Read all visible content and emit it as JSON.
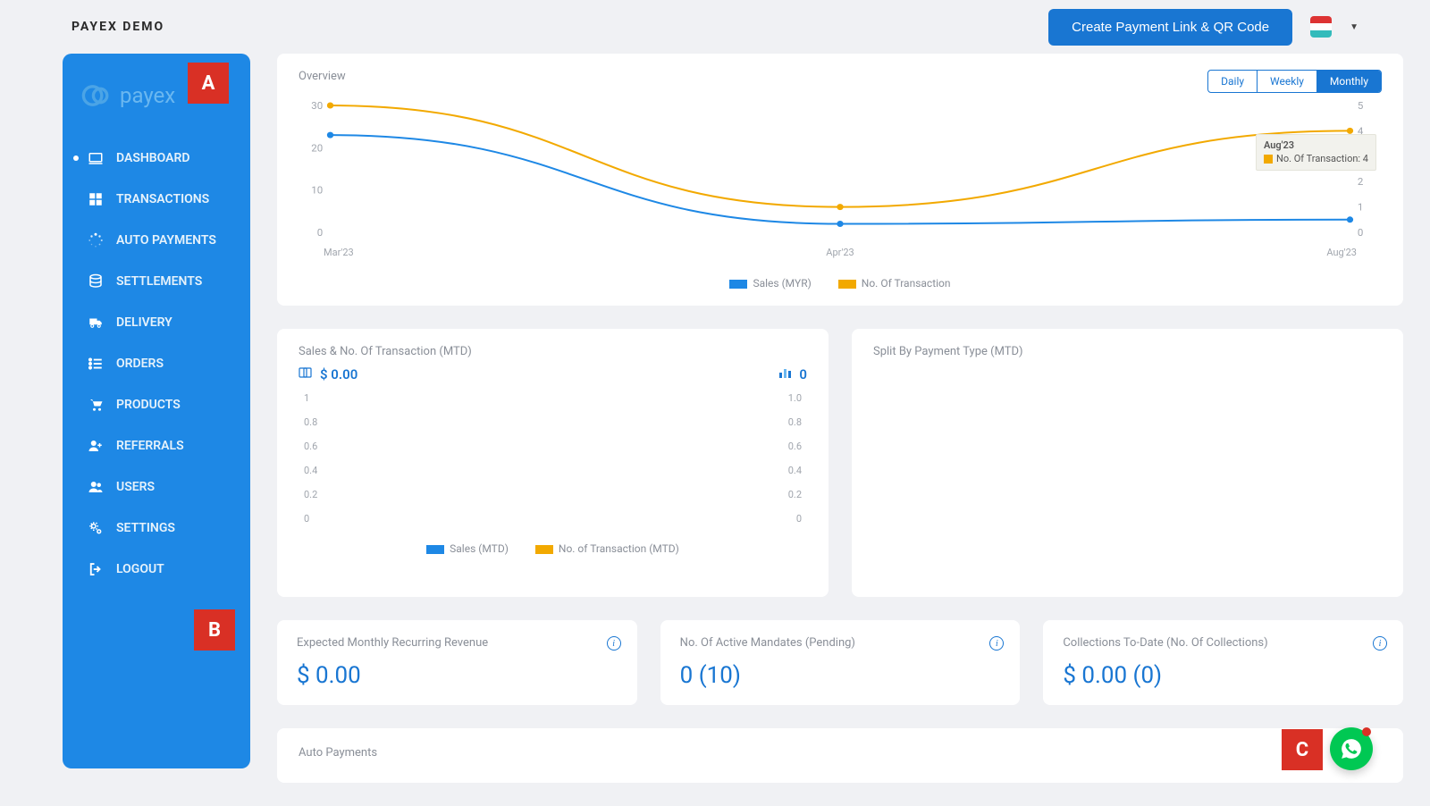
{
  "header": {
    "brand": "PAYEX DEMO",
    "create_btn": "Create Payment Link & QR Code"
  },
  "sidebar": {
    "logo_text": "payex",
    "items": [
      {
        "icon": "laptop",
        "label": "DASHBOARD",
        "active": true
      },
      {
        "icon": "grid",
        "label": "TRANSACTIONS"
      },
      {
        "icon": "spinner",
        "label": "AUTO PAYMENTS"
      },
      {
        "icon": "db",
        "label": "SETTLEMENTS"
      },
      {
        "icon": "truck",
        "label": "DELIVERY"
      },
      {
        "icon": "list",
        "label": "ORDERS"
      },
      {
        "icon": "cart",
        "label": "PRODUCTS"
      },
      {
        "icon": "useradd",
        "label": "REFERRALS"
      },
      {
        "icon": "users",
        "label": "USERS"
      },
      {
        "icon": "cogs",
        "label": "SETTINGS"
      },
      {
        "icon": "logout",
        "label": "LOGOUT"
      }
    ]
  },
  "overview": {
    "title": "Overview",
    "tabs": [
      "Daily",
      "Weekly",
      "Monthly"
    ],
    "active_tab": 2,
    "chart": {
      "x_labels": [
        "Mar'23",
        "Apr'23",
        "Aug'23"
      ],
      "left_ticks": [
        30,
        20,
        10,
        0
      ],
      "right_ticks": [
        5,
        4,
        3,
        2,
        1,
        0
      ],
      "series": [
        {
          "name": "Sales (MYR)",
          "color": "#1e88e5",
          "points": [
            {
              "x": 0,
              "y": 23
            },
            {
              "x": 1,
              "y": 2
            },
            {
              "x": 2,
              "y": 3
            }
          ]
        },
        {
          "name": "No. Of Transaction",
          "color": "#f2a900",
          "right_axis": true,
          "points": [
            {
              "x": 0,
              "y": 5
            },
            {
              "x": 1,
              "y": 1
            },
            {
              "x": 2,
              "y": 4
            }
          ]
        }
      ],
      "tooltip": {
        "title": "Aug'23",
        "label": "No. Of Transaction: 4"
      },
      "left_max": 30,
      "right_max": 5
    },
    "legend": [
      "Sales (MYR)",
      "No. Of Transaction"
    ]
  },
  "mtd_card": {
    "title": "Sales & No. Of Transaction (MTD)",
    "sales_value": "$ 0.00",
    "txn_value": "0",
    "left_ticks": [
      "1",
      "0.8",
      "0.6",
      "0.4",
      "0.2",
      "0"
    ],
    "right_ticks": [
      "1.0",
      "0.8",
      "0.6",
      "0.4",
      "0.2",
      "0"
    ],
    "legend": [
      "Sales (MTD)",
      "No. of Transaction (MTD)"
    ]
  },
  "split_card": {
    "title": "Split By Payment Type (MTD)"
  },
  "stats": [
    {
      "title": "Expected Monthly Recurring Revenue",
      "value": "$ 0.00"
    },
    {
      "title": "No. Of Active Mandates (Pending)",
      "value": "0 (10)"
    },
    {
      "title": "Collections To-Date (No. Of Collections)",
      "value": "$ 0.00 (0)"
    }
  ],
  "auto_payments": {
    "title": "Auto Payments"
  },
  "annotations": {
    "A": "A",
    "B": "B",
    "C": "C"
  },
  "colors": {
    "primary": "#1976d2",
    "sidebar": "#1e88e5",
    "yellow": "#f2a900",
    "red": "#d93025",
    "green": "#00c853",
    "muted": "#8a8f98"
  }
}
